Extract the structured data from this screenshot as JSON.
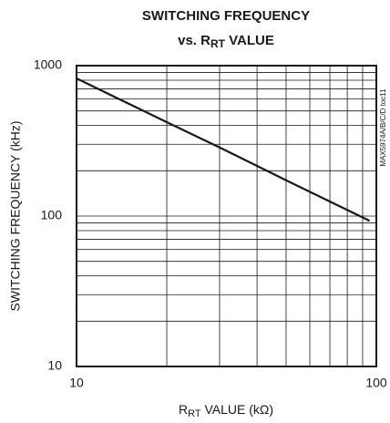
{
  "chart_data": {
    "type": "line",
    "title": "SWITCHING FREQUENCY",
    "subtitle": [
      "vs. R",
      "RT",
      " VALUE"
    ],
    "xlabel": [
      "R",
      "RT",
      " VALUE (kΩ)"
    ],
    "ylabel": "SWITCHING FREQUENCY (kHz)",
    "annotation": "MAX5974A/B/C/D toc11",
    "x": [
      10,
      20,
      30,
      50,
      95
    ],
    "series": [
      {
        "name": "SWITCHING FREQUENCY",
        "color": "#1a1a1a",
        "values": [
          822,
          421,
          286,
          173,
          93
        ]
      }
    ],
    "xlim": [
      10,
      100
    ],
    "xticks": [
      10,
      100
    ],
    "ylim": [
      10,
      1000
    ],
    "yticks": [
      10,
      100,
      1000
    ],
    "xminor": [
      20,
      30,
      40,
      50,
      60,
      70,
      80,
      90
    ],
    "yminor": [
      20,
      30,
      40,
      50,
      60,
      70,
      80,
      90,
      200,
      300,
      400,
      500,
      600,
      700,
      800,
      900
    ],
    "xscale": "log",
    "yscale": "log",
    "grid": true
  }
}
